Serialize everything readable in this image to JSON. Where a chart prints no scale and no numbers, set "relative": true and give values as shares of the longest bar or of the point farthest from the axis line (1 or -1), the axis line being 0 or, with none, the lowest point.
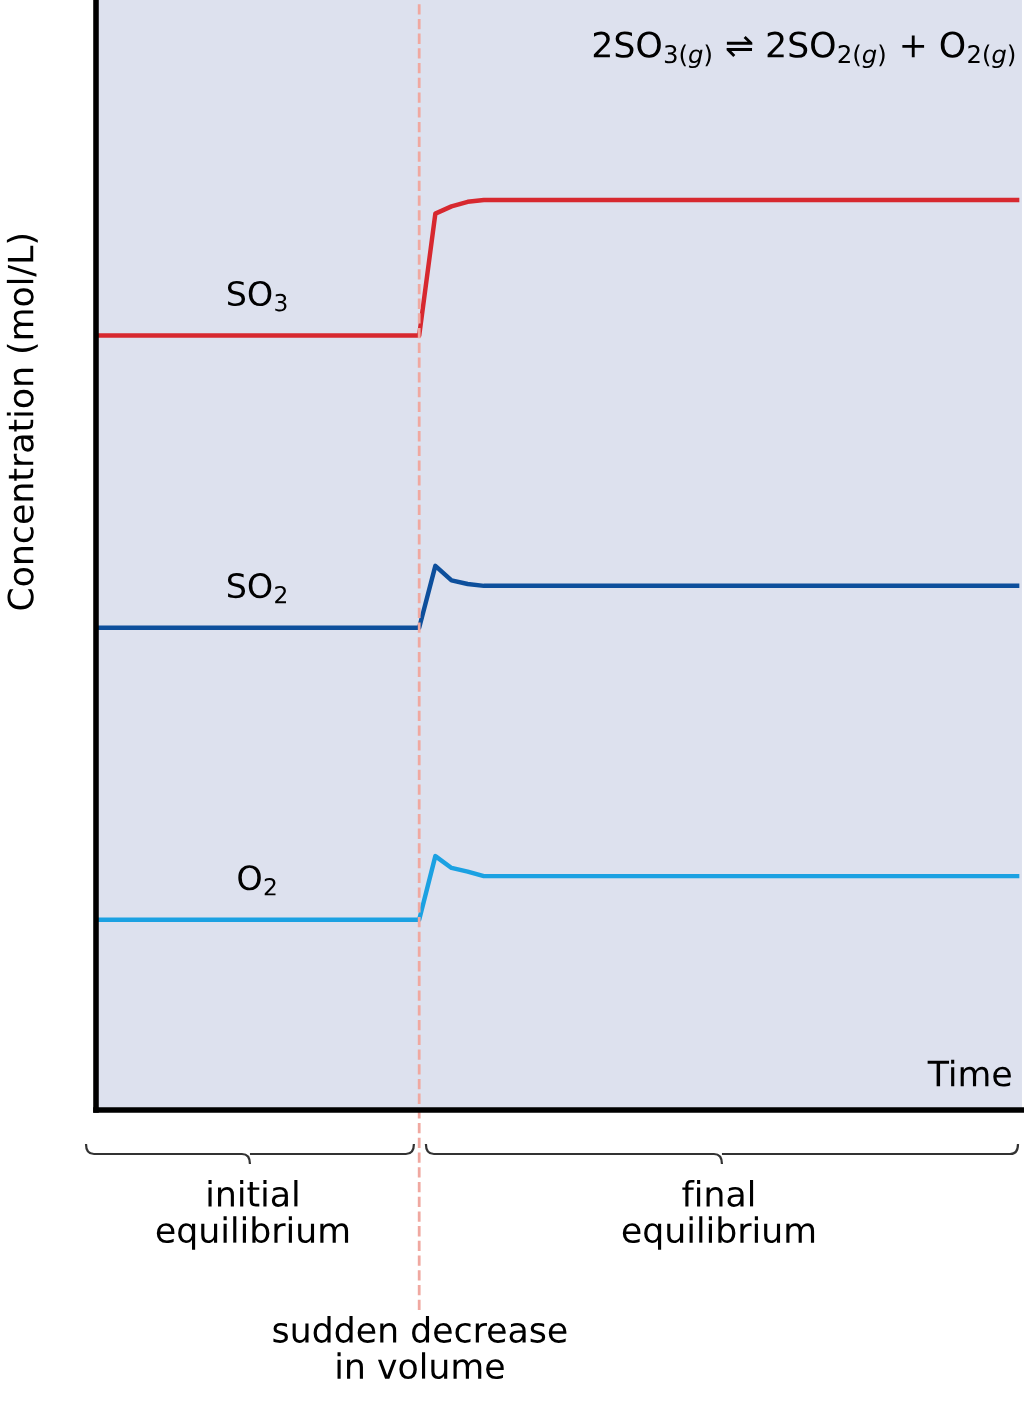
{
  "chart_data": {
    "type": "line",
    "relative": true,
    "xlabel": "Time",
    "ylabel": "Concentration (mol/L)",
    "categories": [
      null,
      null,
      null,
      null,
      null,
      null,
      null,
      null,
      null,
      null,
      null,
      null,
      null,
      null,
      null,
      null,
      null,
      null,
      null,
      null,
      null,
      null,
      null,
      null,
      null,
      null,
      null,
      null,
      null,
      null,
      null,
      null,
      null,
      null,
      null,
      null,
      null,
      null,
      null,
      null,
      null,
      null,
      null,
      null,
      null,
      null,
      null,
      null,
      null,
      null,
      null,
      null,
      null,
      null,
      null,
      null,
      null,
      null
    ],
    "series": [
      {
        "name": "SO$_{3}$",
        "color": "#d7282f",
        "values": [
          0.851,
          0.851,
          0.851,
          0.851,
          0.851,
          0.851,
          0.851,
          0.851,
          0.851,
          0.851,
          0.851,
          0.851,
          0.851,
          0.851,
          0.851,
          0.851,
          0.851,
          0.851,
          0.851,
          0.851,
          0.851,
          0.985,
          0.993,
          0.998,
          1,
          1,
          1,
          1,
          1,
          1,
          1,
          1,
          1,
          1,
          1,
          1,
          1,
          1,
          1,
          1,
          1,
          1,
          1,
          1,
          1,
          1,
          1,
          1,
          1,
          1,
          1,
          1,
          1,
          1,
          1,
          1,
          1,
          1
        ]
      },
      {
        "name": "SO$_{2}$",
        "color": "#0d4f9c",
        "values": [
          0.53,
          0.53,
          0.53,
          0.53,
          0.53,
          0.53,
          0.53,
          0.53,
          0.53,
          0.53,
          0.53,
          0.53,
          0.53,
          0.53,
          0.53,
          0.53,
          0.53,
          0.53,
          0.53,
          0.53,
          0.53,
          0.598,
          0.582,
          0.578,
          0.576,
          0.576,
          0.576,
          0.576,
          0.576,
          0.576,
          0.576,
          0.576,
          0.576,
          0.576,
          0.576,
          0.576,
          0.576,
          0.576,
          0.576,
          0.576,
          0.576,
          0.576,
          0.576,
          0.576,
          0.576,
          0.576,
          0.576,
          0.576,
          0.576,
          0.576,
          0.576,
          0.576,
          0.576,
          0.576,
          0.576,
          0.576,
          0.576,
          0.576
        ]
      },
      {
        "name": "O$_{2}$",
        "color": "#1ba1e2",
        "values": [
          0.209,
          0.209,
          0.209,
          0.209,
          0.209,
          0.209,
          0.209,
          0.209,
          0.209,
          0.209,
          0.209,
          0.209,
          0.209,
          0.209,
          0.209,
          0.209,
          0.209,
          0.209,
          0.209,
          0.209,
          0.209,
          0.279,
          0.266,
          0.262,
          0.257,
          0.257,
          0.257,
          0.257,
          0.257,
          0.257,
          0.257,
          0.257,
          0.257,
          0.257,
          0.257,
          0.257,
          0.257,
          0.257,
          0.257,
          0.257,
          0.257,
          0.257,
          0.257,
          0.257,
          0.257,
          0.257,
          0.257,
          0.257,
          0.257,
          0.257,
          0.257,
          0.257,
          0.257,
          0.257,
          0.257,
          0.257,
          0.257,
          0.257
        ]
      }
    ],
    "annotations": [
      "2SO$_{3(g)}$ ⇌ 2SO$_{2(g)}$ + O$_{2(g)}$",
      "initial\nequilibrium",
      "final\nequilibrium",
      "sudden decrease\nin volume"
    ],
    "grid": false,
    "legend": false,
    "marker": "none",
    "line_style": "solid"
  }
}
